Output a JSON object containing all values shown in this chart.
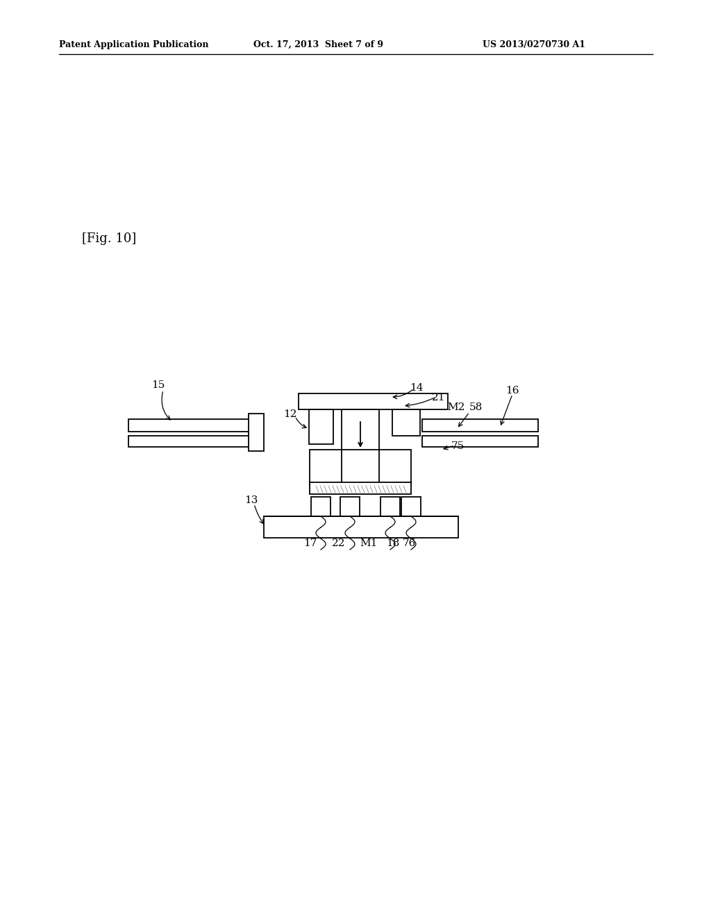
{
  "bg_color": "#ffffff",
  "header_left": "Patent Application Publication",
  "header_mid": "Oct. 17, 2013  Sheet 7 of 9",
  "header_right": "US 2013/0270730 A1",
  "fig_label": "[Fig. 10]"
}
